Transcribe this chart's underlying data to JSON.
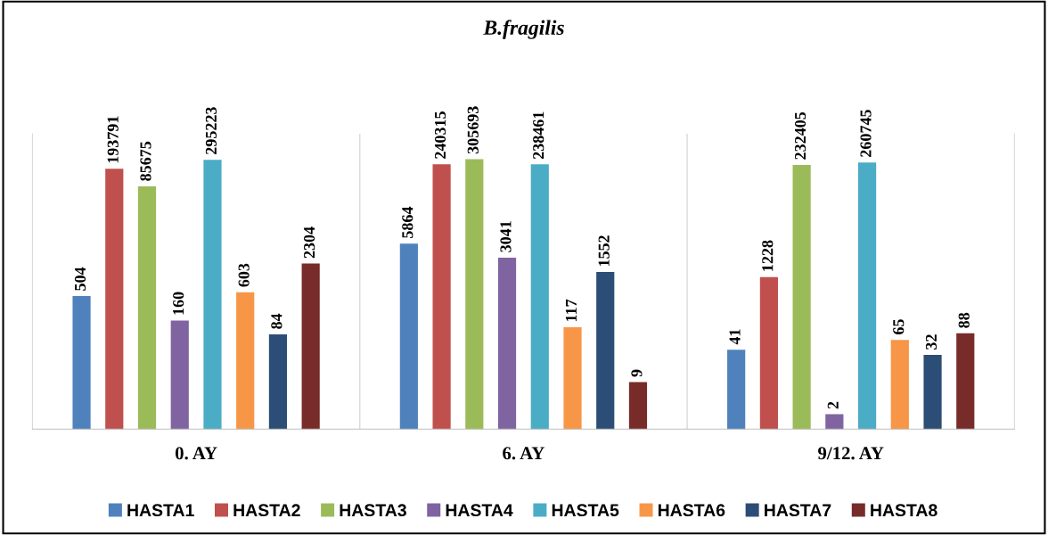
{
  "chart_data": {
    "type": "bar",
    "title": "B.fragilis",
    "categories": [
      "0. AY",
      "6. AY",
      "9/12. AY"
    ],
    "series": [
      {
        "name": "HASTA1",
        "color": "#4f81bd",
        "values": [
          504,
          5864,
          41
        ]
      },
      {
        "name": "HASTA2",
        "color": "#c0504d",
        "values": [
          193791,
          240315,
          1228
        ]
      },
      {
        "name": "HASTA3",
        "color": "#9bbb59",
        "values": [
          85675,
          305693,
          232405
        ]
      },
      {
        "name": "HASTA4",
        "color": "#8064a2",
        "values": [
          160,
          3041,
          2
        ]
      },
      {
        "name": "HASTA5",
        "color": "#4bacc6",
        "values": [
          295223,
          238461,
          260745
        ]
      },
      {
        "name": "HASTA6",
        "color": "#f79646",
        "values": [
          603,
          117,
          65
        ]
      },
      {
        "name": "HASTA7",
        "color": "#2c4d75",
        "values": [
          84,
          1552,
          32
        ]
      },
      {
        "name": "HASTA8",
        "color": "#772c2a",
        "values": [
          2304,
          9,
          88
        ]
      }
    ],
    "log": true,
    "ylim": [
      1,
      1000000
    ],
    "tick_labels": "x",
    "grid": "x",
    "legend": "bottom",
    "data_labels": true
  }
}
